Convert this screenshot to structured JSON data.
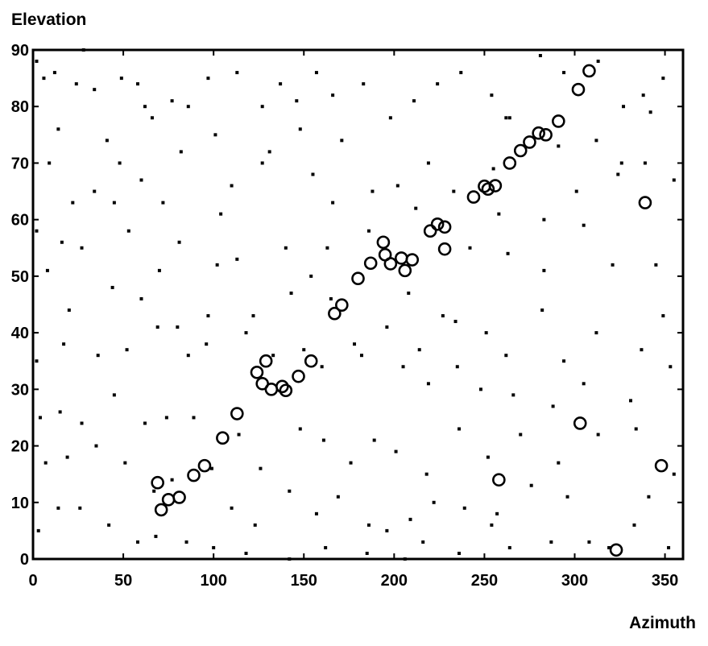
{
  "chart_data": {
    "type": "scatter",
    "title": "",
    "xlabel": "Azimuth",
    "ylabel": "Elevation",
    "xlim": [
      0,
      360
    ],
    "ylim": [
      0,
      90
    ],
    "xticks": [
      0,
      50,
      100,
      150,
      200,
      250,
      300,
      350
    ],
    "yticks": [
      0,
      10,
      20,
      30,
      40,
      50,
      60,
      70,
      80,
      90
    ],
    "grid": false,
    "legend": "none",
    "colors": {
      "marker": "#000000",
      "axes": "#000000",
      "background": "#ffffff"
    },
    "series": [
      {
        "marker": "circle-open",
        "points": [
          [
            69,
            13.5
          ],
          [
            71,
            8.7
          ],
          [
            75,
            10.5
          ],
          [
            81,
            10.9
          ],
          [
            89,
            14.8
          ],
          [
            95,
            16.5
          ],
          [
            105,
            21.4
          ],
          [
            113,
            25.7
          ],
          [
            124,
            33
          ],
          [
            127,
            31
          ],
          [
            129,
            35
          ],
          [
            132,
            30
          ],
          [
            138,
            30.5
          ],
          [
            140,
            29.8
          ],
          [
            147,
            32.3
          ],
          [
            154,
            35
          ],
          [
            167,
            43.4
          ],
          [
            171,
            44.9
          ],
          [
            180,
            49.6
          ],
          [
            187,
            52.3
          ],
          [
            194,
            56
          ],
          [
            195,
            53.8
          ],
          [
            198,
            52.2
          ],
          [
            204,
            53.2
          ],
          [
            206,
            51
          ],
          [
            210,
            52.9
          ],
          [
            220,
            58
          ],
          [
            224,
            59.2
          ],
          [
            228,
            58.7
          ],
          [
            228,
            54.8
          ],
          [
            244,
            64
          ],
          [
            250,
            65.9
          ],
          [
            252,
            65.4
          ],
          [
            256,
            66
          ],
          [
            264,
            70
          ],
          [
            270,
            72.2
          ],
          [
            275,
            73.7
          ],
          [
            280,
            75.3
          ],
          [
            284,
            75
          ],
          [
            291,
            77.4
          ],
          [
            302,
            83
          ],
          [
            308,
            86.3
          ],
          [
            339,
            63
          ],
          [
            303,
            24
          ],
          [
            258,
            14
          ],
          [
            323,
            1.6
          ],
          [
            348,
            16.5
          ]
        ]
      },
      {
        "marker": "dot",
        "points": [
          [
            2,
            88
          ],
          [
            6,
            85
          ],
          [
            12,
            86
          ],
          [
            24,
            84
          ],
          [
            28,
            90
          ],
          [
            34,
            83
          ],
          [
            49,
            85
          ],
          [
            58,
            84
          ],
          [
            62,
            80
          ],
          [
            77,
            81
          ],
          [
            86,
            80
          ],
          [
            97,
            85
          ],
          [
            113,
            86
          ],
          [
            127,
            80
          ],
          [
            137,
            84
          ],
          [
            146,
            81
          ],
          [
            157,
            86
          ],
          [
            166,
            82
          ],
          [
            183,
            84
          ],
          [
            198,
            78
          ],
          [
            211,
            81
          ],
          [
            224,
            84
          ],
          [
            237,
            86
          ],
          [
            254,
            82
          ],
          [
            262,
            78
          ],
          [
            281,
            89
          ],
          [
            294,
            86
          ],
          [
            313,
            88
          ],
          [
            327,
            80
          ],
          [
            338,
            82
          ],
          [
            349,
            85
          ],
          [
            14,
            76
          ],
          [
            41,
            74
          ],
          [
            48,
            70
          ],
          [
            66,
            78
          ],
          [
            82,
            72
          ],
          [
            101,
            75
          ],
          [
            131,
            72
          ],
          [
            148,
            76
          ],
          [
            171,
            74
          ],
          [
            202,
            66
          ],
          [
            219,
            70
          ],
          [
            255,
            69
          ],
          [
            264,
            78
          ],
          [
            291,
            73
          ],
          [
            312,
            74
          ],
          [
            324,
            68
          ],
          [
            339,
            70
          ],
          [
            355,
            67
          ],
          [
            9,
            70
          ],
          [
            22,
            63
          ],
          [
            34,
            65
          ],
          [
            45,
            63
          ],
          [
            60,
            67
          ],
          [
            72,
            63
          ],
          [
            104,
            61
          ],
          [
            110,
            66
          ],
          [
            127,
            70
          ],
          [
            155,
            68
          ],
          [
            166,
            63
          ],
          [
            188,
            65
          ],
          [
            212,
            62
          ],
          [
            233,
            65
          ],
          [
            258,
            61
          ],
          [
            283,
            60
          ],
          [
            301,
            65
          ],
          [
            326,
            70
          ],
          [
            342,
            79
          ],
          [
            2,
            58
          ],
          [
            16,
            56
          ],
          [
            27,
            55
          ],
          [
            53,
            58
          ],
          [
            70,
            51
          ],
          [
            81,
            56
          ],
          [
            102,
            52
          ],
          [
            113,
            53
          ],
          [
            140,
            55
          ],
          [
            154,
            50
          ],
          [
            163,
            55
          ],
          [
            186,
            58
          ],
          [
            208,
            47
          ],
          [
            227,
            43
          ],
          [
            242,
            55
          ],
          [
            263,
            54
          ],
          [
            283,
            51
          ],
          [
            305,
            59
          ],
          [
            321,
            52
          ],
          [
            345,
            52
          ],
          [
            8,
            51
          ],
          [
            20,
            44
          ],
          [
            44,
            48
          ],
          [
            60,
            46
          ],
          [
            80,
            41
          ],
          [
            97,
            43
          ],
          [
            122,
            43
          ],
          [
            143,
            47
          ],
          [
            165,
            46
          ],
          [
            178,
            38
          ],
          [
            196,
            41
          ],
          [
            214,
            37
          ],
          [
            234,
            42
          ],
          [
            251,
            40
          ],
          [
            262,
            36
          ],
          [
            282,
            44
          ],
          [
            294,
            35
          ],
          [
            312,
            40
          ],
          [
            337,
            37
          ],
          [
            349,
            43
          ],
          [
            2,
            35
          ],
          [
            17,
            38
          ],
          [
            36,
            36
          ],
          [
            52,
            37
          ],
          [
            69,
            41
          ],
          [
            86,
            36
          ],
          [
            96,
            38
          ],
          [
            118,
            40
          ],
          [
            133,
            36
          ],
          [
            150,
            37
          ],
          [
            160,
            34
          ],
          [
            182,
            36
          ],
          [
            205,
            34
          ],
          [
            219,
            31
          ],
          [
            235,
            34
          ],
          [
            248,
            30
          ],
          [
            266,
            29
          ],
          [
            288,
            27
          ],
          [
            305,
            31
          ],
          [
            331,
            28
          ],
          [
            353,
            34
          ],
          [
            4,
            25
          ],
          [
            15,
            26
          ],
          [
            27,
            24
          ],
          [
            45,
            29
          ],
          [
            62,
            24
          ],
          [
            74,
            25
          ],
          [
            89,
            25
          ],
          [
            114,
            22
          ],
          [
            126,
            16
          ],
          [
            148,
            23
          ],
          [
            161,
            21
          ],
          [
            176,
            17
          ],
          [
            189,
            21
          ],
          [
            201,
            19
          ],
          [
            218,
            15
          ],
          [
            236,
            23
          ],
          [
            252,
            18
          ],
          [
            270,
            22
          ],
          [
            291,
            17
          ],
          [
            313,
            22
          ],
          [
            334,
            23
          ],
          [
            7,
            17
          ],
          [
            19,
            18
          ],
          [
            35,
            20
          ],
          [
            51,
            17
          ],
          [
            67,
            12
          ],
          [
            77,
            14
          ],
          [
            99,
            16
          ],
          [
            110,
            9
          ],
          [
            123,
            6
          ],
          [
            142,
            12
          ],
          [
            157,
            8
          ],
          [
            169,
            11
          ],
          [
            186,
            6
          ],
          [
            196,
            5
          ],
          [
            209,
            7
          ],
          [
            222,
            10
          ],
          [
            239,
            9
          ],
          [
            257,
            8
          ],
          [
            276,
            13
          ],
          [
            296,
            11
          ],
          [
            319,
            2
          ],
          [
            333,
            6
          ],
          [
            352,
            2
          ],
          [
            3,
            5
          ],
          [
            14,
            9
          ],
          [
            26,
            9
          ],
          [
            42,
            6
          ],
          [
            58,
            3
          ],
          [
            68,
            4
          ],
          [
            85,
            3
          ],
          [
            100,
            2
          ],
          [
            118,
            1
          ],
          [
            142,
            0
          ],
          [
            162,
            2
          ],
          [
            185,
            1
          ],
          [
            206,
            0
          ],
          [
            216,
            3
          ],
          [
            236,
            1
          ],
          [
            254,
            6
          ],
          [
            264,
            2
          ],
          [
            287,
            3
          ],
          [
            308,
            3
          ],
          [
            341,
            11
          ],
          [
            355,
            15
          ]
        ]
      }
    ]
  }
}
